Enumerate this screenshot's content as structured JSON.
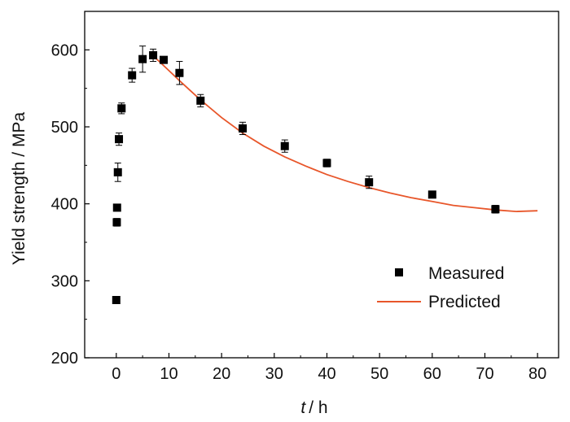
{
  "chart_data": {
    "type": "scatter",
    "title": "",
    "xlabel_var": "t",
    "xlabel_unit": "/ h",
    "ylabel": "Yield strength / MPa",
    "xlim": [
      -6,
      84
    ],
    "ylim": [
      200,
      650
    ],
    "x_ticks": [
      0,
      10,
      20,
      30,
      40,
      50,
      60,
      70,
      80
    ],
    "y_ticks": [
      200,
      300,
      400,
      500,
      600
    ],
    "grid": false,
    "legend_position": "lower-right",
    "series": [
      {
        "name": "Measured",
        "marker": "square",
        "color": "#000000",
        "x": [
          0,
          0.1,
          0.15,
          0.3,
          0.5,
          1,
          3,
          5,
          7,
          9,
          12,
          16,
          24,
          32,
          40,
          48,
          60,
          72
        ],
        "y": [
          275,
          376,
          395,
          441,
          484,
          524,
          567,
          588,
          593,
          587,
          570,
          534,
          498,
          475,
          453,
          428,
          412,
          393
        ],
        "error": [
          0,
          5,
          0,
          12,
          8,
          7,
          9,
          17,
          8,
          4,
          15,
          8,
          8,
          8,
          5,
          8,
          4,
          5
        ]
      },
      {
        "name": "Predicted",
        "color": "#e8562a",
        "x": [
          7,
          8,
          10,
          12,
          16,
          20,
          24,
          28,
          32,
          36,
          40,
          44,
          48,
          52,
          56,
          60,
          64,
          68,
          72,
          76,
          80
        ],
        "y": [
          592,
          586,
          573,
          560,
          535,
          512,
          492,
          475,
          461,
          449,
          438,
          429,
          421,
          414,
          408,
          403,
          398,
          395,
          392,
          390,
          391
        ]
      }
    ]
  }
}
